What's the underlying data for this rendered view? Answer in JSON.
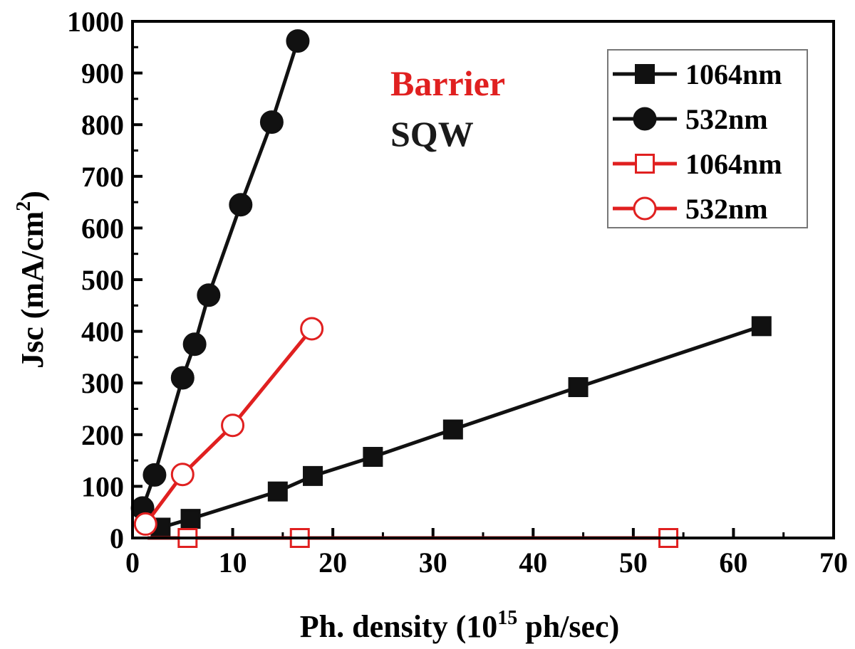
{
  "chart_data": {
    "type": "line",
    "xlabel": "Ph. density (10",
    "xlabel_sup": "15",
    "xlabel_tail": " ph/sec)",
    "ylabel": "Jsc (mA/cm",
    "ylabel_sup": "2",
    "ylabel_tail": ")",
    "xlim": [
      0,
      70
    ],
    "ylim": [
      0,
      1000
    ],
    "x_ticks": [
      0,
      10,
      20,
      30,
      40,
      50,
      60,
      70
    ],
    "y_ticks": [
      0,
      100,
      200,
      300,
      400,
      500,
      600,
      700,
      800,
      900,
      1000
    ],
    "grid": false,
    "legend_position": "top-right",
    "annotations": [
      {
        "text": "Barrier",
        "color": "#e02020"
      },
      {
        "text": "SQW",
        "color": "#1a1a1a"
      }
    ],
    "series": [
      {
        "name": "1064nm",
        "group": "SQW",
        "color": "#111111",
        "marker": "square",
        "filled": true,
        "x": [
          2.8,
          5.8,
          14.5,
          18.0,
          24.0,
          32.0,
          44.5,
          62.8
        ],
        "y": [
          20,
          37,
          90,
          120,
          157,
          210,
          292,
          410
        ]
      },
      {
        "name": "532nm",
        "group": "SQW",
        "color": "#111111",
        "marker": "circle",
        "filled": true,
        "x": [
          1.0,
          2.2,
          5.0,
          6.2,
          7.6,
          10.8,
          13.9,
          16.5
        ],
        "y": [
          58,
          122,
          310,
          375,
          470,
          645,
          805,
          962
        ]
      },
      {
        "name": "1064nm",
        "group": "Barrier",
        "color": "#e02020",
        "marker": "square",
        "filled": false,
        "x": [
          5.5,
          16.7,
          53.5
        ],
        "y": [
          0,
          0,
          0
        ]
      },
      {
        "name": "532nm",
        "group": "Barrier",
        "color": "#e02020",
        "marker": "circle",
        "filled": false,
        "x": [
          1.3,
          5.0,
          10.0,
          17.9
        ],
        "y": [
          27,
          123,
          218,
          405
        ]
      }
    ]
  }
}
